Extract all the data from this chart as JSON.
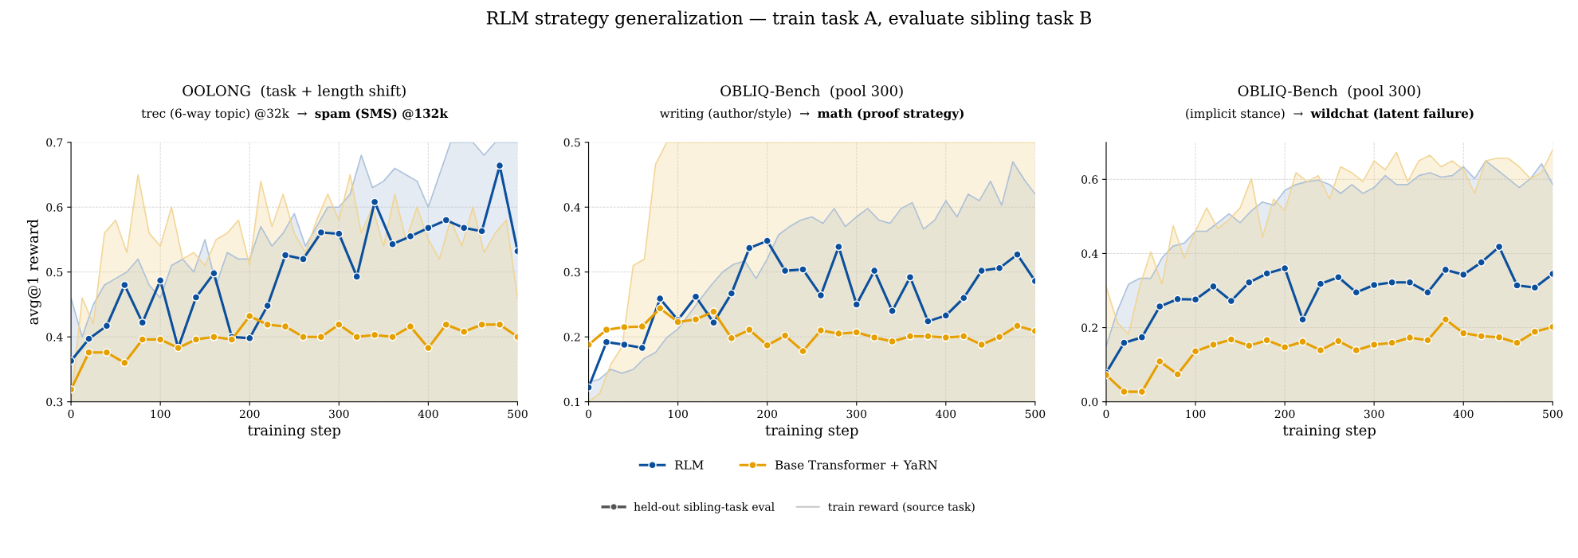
{
  "chart_data": [
    {
      "type": "line",
      "title": "OOLONG  (task + length shift)",
      "subtitle": "trec (6-way topic) @32k  →  spam (SMS) @132k",
      "xlabel": "training step",
      "ylabel": "avg@1 reward",
      "annotations": [
        "RLM strategy generalization — train task A, evaluate sibling task B",
        "held-out sibling-task eval",
        "train reward (source task)"
      ],
      "x": [
        0,
        20,
        40,
        60,
        80,
        100,
        120,
        140,
        160,
        180,
        200,
        220,
        240,
        260,
        280,
        300,
        320,
        340,
        360,
        380,
        400,
        420,
        440,
        460,
        480,
        500
      ],
      "xlim": [
        0,
        500
      ],
      "xticks": [
        0,
        100,
        200,
        300,
        400,
        500
      ],
      "ylim": [
        0.3,
        0.7
      ],
      "yticks": [
        0.3,
        0.4,
        0.5,
        0.6,
        0.7
      ],
      "grid": true,
      "legend": "bottom",
      "line_style": "solid",
      "series": [
        {
          "type": "area",
          "color": "#a6bdd6",
          "x": [
            0,
            12.5,
            25,
            37.5,
            50,
            62.5,
            75,
            87.5,
            100,
            112.5,
            125,
            137.5,
            150,
            162.5,
            175,
            187.5,
            200,
            212.5,
            225,
            237.5,
            250,
            262.5,
            275,
            287.5,
            300,
            312.5,
            325,
            337.5,
            350,
            362.5,
            375,
            387.5,
            400,
            412.5,
            425,
            437.5,
            450,
            462.5,
            475,
            487.5,
            500
          ],
          "values": [
            0.46,
            0.4,
            0.45,
            0.48,
            0.49,
            0.5,
            0.52,
            0.48,
            0.46,
            0.51,
            0.52,
            0.5,
            0.55,
            0.48,
            0.53,
            0.52,
            0.52,
            0.57,
            0.54,
            0.56,
            0.59,
            0.54,
            0.57,
            0.6,
            0.6,
            0.62,
            0.68,
            0.63,
            0.64,
            0.66,
            0.65,
            0.64,
            0.6,
            0.65,
            0.7,
            0.7,
            0.7,
            0.68,
            0.7,
            0.7,
            0.7
          ]
        },
        {
          "type": "area",
          "color": "#f1d38f",
          "x": [
            0,
            12.5,
            25,
            37.5,
            50,
            62.5,
            75,
            87.5,
            100,
            112.5,
            125,
            137.5,
            150,
            162.5,
            175,
            187.5,
            200,
            212.5,
            225,
            237.5,
            250,
            262.5,
            275,
            287.5,
            300,
            312.5,
            325,
            337.5,
            350,
            362.5,
            375,
            387.5,
            400,
            412.5,
            425,
            437.5,
            450,
            462.5,
            475,
            487.5,
            500
          ],
          "values": [
            0.3,
            0.46,
            0.42,
            0.56,
            0.58,
            0.53,
            0.65,
            0.56,
            0.54,
            0.6,
            0.52,
            0.53,
            0.51,
            0.55,
            0.56,
            0.58,
            0.51,
            0.64,
            0.57,
            0.62,
            0.56,
            0.53,
            0.58,
            0.62,
            0.58,
            0.65,
            0.56,
            0.6,
            0.54,
            0.62,
            0.55,
            0.6,
            0.55,
            0.52,
            0.58,
            0.54,
            0.6,
            0.53,
            0.56,
            0.58,
            0.46
          ]
        },
        {
          "name": "RLM",
          "marker": "circle",
          "color": "#0b4f9c",
          "values": [
            0.363,
            0.397,
            0.417,
            0.48,
            0.422,
            0.487,
            0.383,
            0.461,
            0.498,
            0.4,
            0.398,
            0.448,
            0.526,
            0.52,
            0.561,
            0.559,
            0.493,
            0.608,
            0.543,
            0.555,
            0.568,
            0.58,
            0.568,
            0.563,
            0.664,
            0.532
          ]
        },
        {
          "name": "Base Transformer + YaRN",
          "marker": "circle",
          "color": "#e69f00",
          "values": [
            0.319,
            0.376,
            0.376,
            0.36,
            0.396,
            0.396,
            0.383,
            0.396,
            0.4,
            0.396,
            0.432,
            0.419,
            0.416,
            0.4,
            0.4,
            0.419,
            0.4,
            0.403,
            0.4,
            0.416,
            0.383,
            0.419,
            0.408,
            0.419,
            0.419,
            0.4
          ]
        }
      ]
    },
    {
      "type": "line",
      "title": "OBLIQ-Bench  (pool 300)",
      "subtitle": "writing (author/style)  →  math (proof strategy)",
      "xlabel": "training step",
      "x": [
        0,
        20,
        40,
        60,
        80,
        100,
        120,
        140,
        160,
        180,
        200,
        220,
        240,
        260,
        280,
        300,
        320,
        340,
        360,
        380,
        400,
        420,
        440,
        460,
        480,
        500
      ],
      "xlim": [
        0,
        500
      ],
      "xticks": [
        0,
        100,
        200,
        300,
        400,
        500
      ],
      "ylim": [
        0.1,
        0.5
      ],
      "yticks": [
        0.1,
        0.2,
        0.3,
        0.4,
        0.5
      ],
      "grid": true,
      "line_style": "solid",
      "series": [
        {
          "type": "area",
          "color": "#a6bdd6",
          "x": [
            0,
            12.5,
            25,
            37.5,
            50,
            62.5,
            75,
            87.5,
            100,
            112.5,
            125,
            137.5,
            150,
            162.5,
            175,
            187.5,
            200,
            212.5,
            225,
            237.5,
            250,
            262.5,
            275,
            287.5,
            300,
            312.5,
            325,
            337.5,
            350,
            362.5,
            375,
            387.5,
            400,
            412.5,
            425,
            437.5,
            450,
            462.5,
            475,
            487.5,
            500
          ],
          "values": [
            0.13,
            0.135,
            0.15,
            0.144,
            0.15,
            0.167,
            0.176,
            0.199,
            0.212,
            0.235,
            0.258,
            0.28,
            0.3,
            0.312,
            0.317,
            0.29,
            0.32,
            0.357,
            0.37,
            0.38,
            0.385,
            0.375,
            0.398,
            0.37,
            0.385,
            0.398,
            0.38,
            0.375,
            0.398,
            0.407,
            0.366,
            0.38,
            0.41,
            0.385,
            0.42,
            0.41,
            0.44,
            0.403,
            0.47,
            0.443,
            0.42
          ]
        },
        {
          "type": "area",
          "color": "#f1d38f",
          "x": [
            0,
            12.5,
            25,
            37.5,
            50,
            62.5,
            75,
            87.5,
            100,
            112.5,
            125,
            137.5,
            150,
            162.5,
            175,
            187.5,
            200,
            212.5,
            225,
            237.5,
            250,
            262.5,
            275,
            287.5,
            300,
            312.5,
            325,
            337.5,
            350,
            362.5,
            375,
            387.5,
            400,
            412.5,
            425,
            437.5,
            450,
            462.5,
            475,
            487.5,
            500
          ],
          "values": [
            0.1,
            0.113,
            0.158,
            0.185,
            0.31,
            0.32,
            0.466,
            0.5,
            0.5,
            0.5,
            0.5,
            0.5,
            0.5,
            0.5,
            0.5,
            0.5,
            0.5,
            0.5,
            0.5,
            0.5,
            0.5,
            0.5,
            0.5,
            0.5,
            0.5,
            0.5,
            0.5,
            0.5,
            0.5,
            0.5,
            0.5,
            0.5,
            0.5,
            0.5,
            0.5,
            0.5,
            0.5,
            0.5,
            0.5,
            0.5,
            0.5
          ]
        },
        {
          "marker": "circle",
          "color": "#0b4f9c",
          "values": [
            0.122,
            0.192,
            0.188,
            0.183,
            0.259,
            0.226,
            0.262,
            0.222,
            0.267,
            0.337,
            0.348,
            0.302,
            0.304,
            0.264,
            0.339,
            0.25,
            0.302,
            0.24,
            0.292,
            0.224,
            0.233,
            0.26,
            0.302,
            0.306,
            0.327,
            0.286
          ]
        },
        {
          "marker": "circle",
          "color": "#e69f00",
          "values": [
            0.188,
            0.211,
            0.215,
            0.216,
            0.244,
            0.223,
            0.227,
            0.239,
            0.198,
            0.211,
            0.187,
            0.202,
            0.178,
            0.21,
            0.205,
            0.207,
            0.199,
            0.193,
            0.201,
            0.201,
            0.199,
            0.201,
            0.188,
            0.2,
            0.217,
            0.209
          ]
        }
      ]
    },
    {
      "type": "line",
      "title": "OBLIQ-Bench  (pool 300)",
      "subtitle": "(implicit stance)  →  wildchat (latent failure)",
      "xlabel": "training step",
      "x": [
        0,
        20,
        40,
        60,
        80,
        100,
        120,
        140,
        160,
        180,
        200,
        220,
        240,
        260,
        280,
        300,
        320,
        340,
        360,
        380,
        400,
        420,
        440,
        460,
        480,
        500
      ],
      "xlim": [
        0,
        500
      ],
      "xticks": [
        0,
        100,
        200,
        300,
        400,
        500
      ],
      "ylim": [
        0,
        0.7
      ],
      "yticks": [
        {
          "value": 0,
          "label": "0.0"
        },
        0.2,
        0.4,
        0.6
      ],
      "grid": true,
      "line_style": "solid",
      "series": [
        {
          "type": "area",
          "color": "#a6bdd6",
          "x": [
            0,
            12.5,
            25,
            37.5,
            50,
            62.5,
            75,
            87.5,
            100,
            112.5,
            125,
            137.5,
            150,
            162.5,
            175,
            187.5,
            200,
            212.5,
            225,
            237.5,
            250,
            262.5,
            275,
            287.5,
            300,
            312.5,
            325,
            337.5,
            350,
            362.5,
            375,
            387.5,
            400,
            412.5,
            425,
            437.5,
            450,
            462.5,
            475,
            487.5,
            500
          ],
          "values": [
            0.15,
            0.245,
            0.317,
            0.333,
            0.333,
            0.388,
            0.42,
            0.428,
            0.46,
            0.46,
            0.483,
            0.507,
            0.483,
            0.515,
            0.539,
            0.53,
            0.57,
            0.586,
            0.594,
            0.598,
            0.586,
            0.562,
            0.586,
            0.562,
            0.578,
            0.61,
            0.586,
            0.586,
            0.61,
            0.618,
            0.606,
            0.61,
            0.634,
            0.602,
            0.65,
            0.626,
            0.602,
            0.578,
            0.602,
            0.642,
            0.586
          ]
        },
        {
          "type": "area",
          "color": "#f1d38f",
          "x": [
            0,
            12.5,
            25,
            37.5,
            50,
            62.5,
            75,
            87.5,
            100,
            112.5,
            125,
            137.5,
            150,
            162.5,
            175,
            187.5,
            200,
            212.5,
            225,
            237.5,
            250,
            262.5,
            275,
            287.5,
            300,
            312.5,
            325,
            337.5,
            350,
            362.5,
            375,
            387.5,
            400,
            412.5,
            425,
            437.5,
            450,
            462.5,
            475,
            487.5,
            500
          ],
          "values": [
            0.31,
            0.214,
            0.182,
            0.31,
            0.404,
            0.317,
            0.475,
            0.388,
            0.46,
            0.523,
            0.467,
            0.491,
            0.523,
            0.602,
            0.444,
            0.547,
            0.515,
            0.618,
            0.594,
            0.61,
            0.547,
            0.634,
            0.618,
            0.594,
            0.65,
            0.626,
            0.673,
            0.594,
            0.65,
            0.665,
            0.634,
            0.65,
            0.626,
            0.562,
            0.65,
            0.657,
            0.657,
            0.634,
            0.602,
            0.618,
            0.68
          ]
        },
        {
          "marker": "circle",
          "color": "#0b4f9c",
          "values": [
            0.078,
            0.159,
            0.174,
            0.257,
            0.277,
            0.276,
            0.311,
            0.272,
            0.322,
            0.346,
            0.36,
            0.222,
            0.318,
            0.336,
            0.295,
            0.315,
            0.322,
            0.322,
            0.295,
            0.356,
            0.343,
            0.376,
            0.418,
            0.314,
            0.308,
            0.345
          ]
        },
        {
          "marker": "circle",
          "color": "#e69f00",
          "values": [
            0.072,
            0.027,
            0.027,
            0.109,
            0.074,
            0.136,
            0.154,
            0.168,
            0.151,
            0.166,
            0.147,
            0.162,
            0.139,
            0.164,
            0.139,
            0.154,
            0.159,
            0.173,
            0.166,
            0.222,
            0.185,
            0.177,
            0.174,
            0.159,
            0.189,
            0.202
          ]
        }
      ]
    }
  ]
}
